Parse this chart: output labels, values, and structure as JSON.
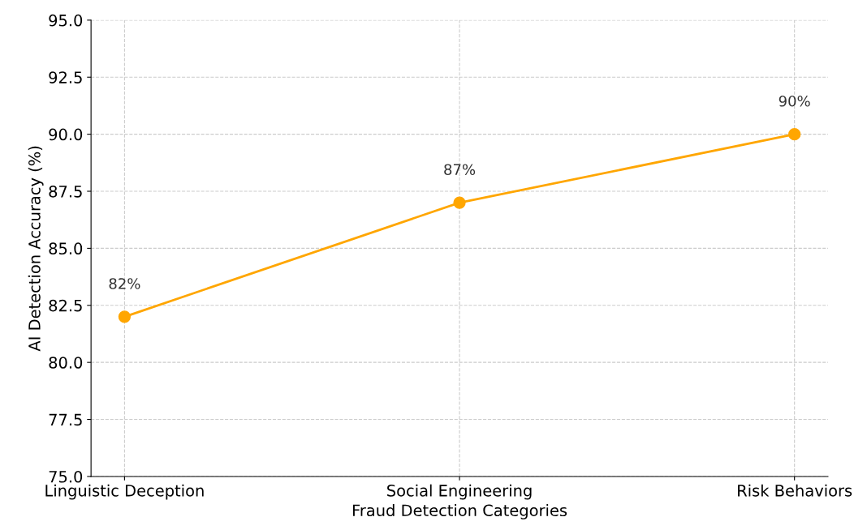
{
  "chart_data": {
    "type": "line",
    "xlabel": "Fraud Detection Categories",
    "ylabel": "AI Detection Accuracy (%)",
    "categories": [
      "Linguistic Deception",
      "Social Engineering",
      "Risk Behaviors"
    ],
    "series": [
      {
        "color": "#ffa600",
        "values": [
          82,
          87,
          90
        ],
        "value_labels": [
          "82%",
          "87%",
          "90%"
        ]
      }
    ],
    "ylim": [
      75,
      95
    ],
    "yticks": [
      "75.0",
      "77.5",
      "80.0",
      "82.5",
      "85.0",
      "87.5",
      "90.0",
      "92.5",
      "95.0"
    ],
    "grid": true,
    "marker": "circle",
    "line_style": "solid"
  }
}
